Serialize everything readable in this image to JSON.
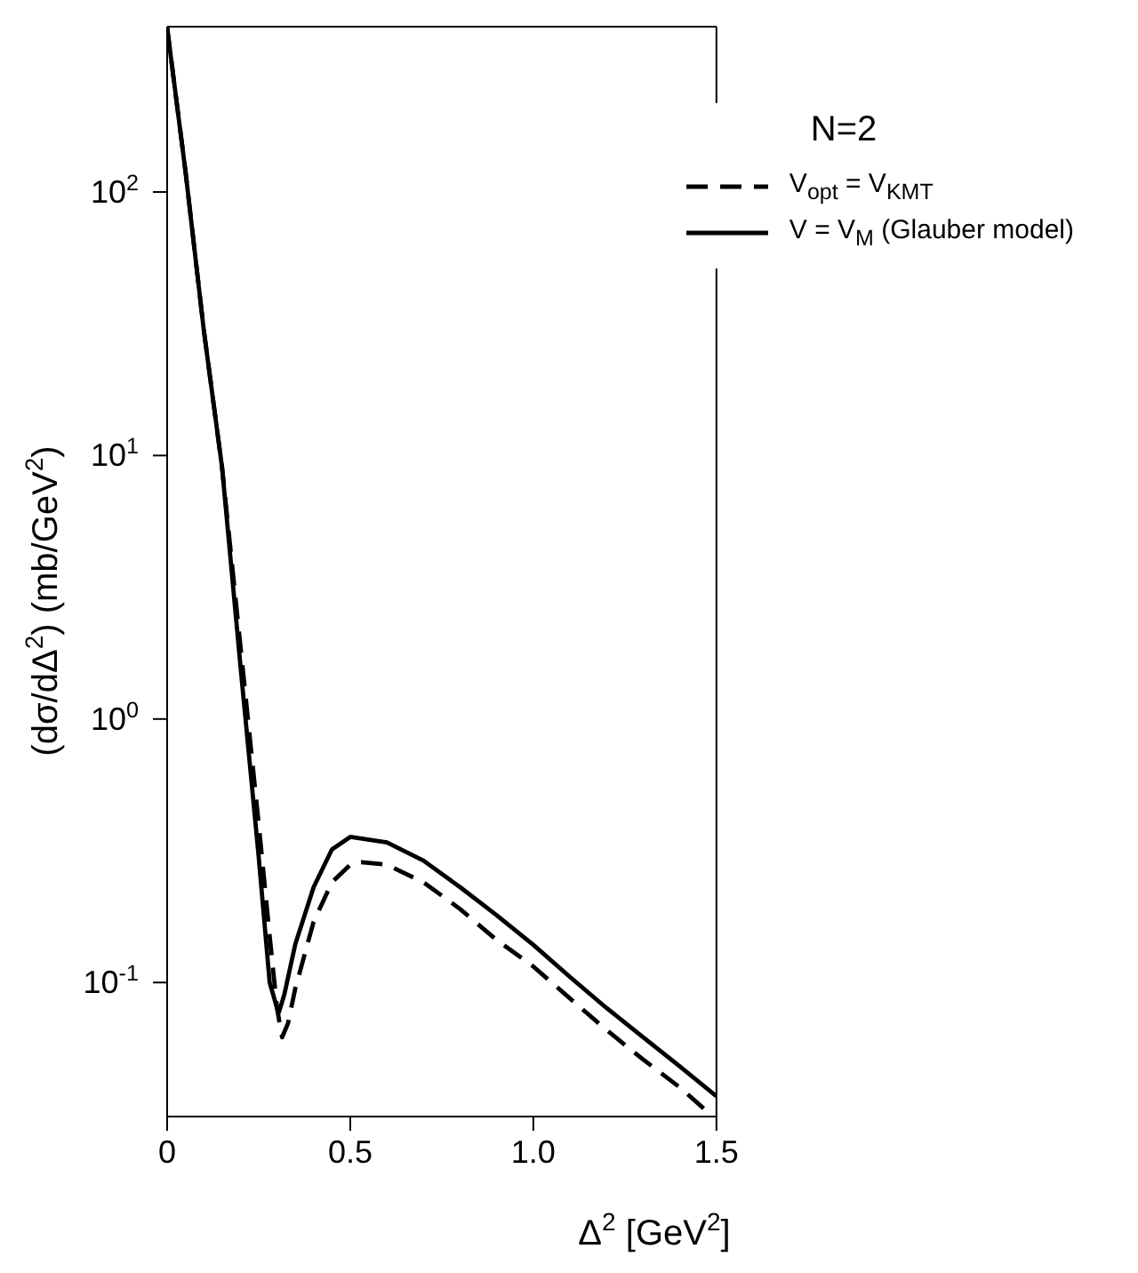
{
  "chart_data": {
    "type": "line",
    "xlabel": "Δ$^{2}$ [GeV$^{2}$]",
    "ylabel": "(dσ/dΔ$^{2}$) (mb/GeV$^{2}$)",
    "legend_title": "N=2",
    "legend": "top right",
    "log": "y",
    "grid": false,
    "marker": "none",
    "xlim": [
      0,
      1.5
    ],
    "xticks": [
      0,
      0.5,
      {
        "value": 1,
        "label": "1.0"
      },
      1.5
    ],
    "ylim": [
      0.031,
      424
    ],
    "yticks": [
      {
        "value": 0.1,
        "label": "10$^{-1}$"
      },
      {
        "value": 1,
        "label": "10$^{0}$"
      },
      {
        "value": 10,
        "label": "10$^{1}$"
      },
      {
        "value": 100,
        "label": "10$^{2}$"
      }
    ],
    "series": [
      {
        "name": "V$_{opt}$ = V$_{KMT}$",
        "color": "#000000",
        "line_style": "dashed",
        "x": [
          0,
          0.05,
          0.1,
          0.15,
          0.2,
          0.25,
          0.28,
          0.3,
          0.314,
          0.33,
          0.35,
          0.4,
          0.45,
          0.5,
          0.53,
          0.6,
          0.7,
          0.8,
          0.9,
          1.0,
          1.1,
          1.2,
          1.3,
          1.4,
          1.49
        ],
        "values": [
          420,
          120,
          30,
          9,
          1.9,
          0.4,
          0.15,
          0.08,
          0.062,
          0.07,
          0.095,
          0.17,
          0.24,
          0.28,
          0.286,
          0.28,
          0.24,
          0.19,
          0.145,
          0.115,
          0.087,
          0.066,
          0.051,
          0.04,
          0.031
        ]
      },
      {
        "name": "V = V$_{M}$ (Glauber model)",
        "color": "#000000",
        "line_style": "solid",
        "x": [
          0,
          0.05,
          0.1,
          0.15,
          0.2,
          0.25,
          0.28,
          0.3,
          0.305,
          0.32,
          0.35,
          0.4,
          0.45,
          0.5,
          0.6,
          0.7,
          0.8,
          0.9,
          1.0,
          1.1,
          1.2,
          1.3,
          1.4,
          1.5
        ],
        "values": [
          420,
          120,
          30,
          9,
          1.6,
          0.3,
          0.1,
          0.08,
          0.077,
          0.09,
          0.14,
          0.23,
          0.32,
          0.357,
          0.34,
          0.29,
          0.23,
          0.18,
          0.139,
          0.105,
          0.08,
          0.062,
          0.048,
          0.037
        ]
      }
    ]
  }
}
